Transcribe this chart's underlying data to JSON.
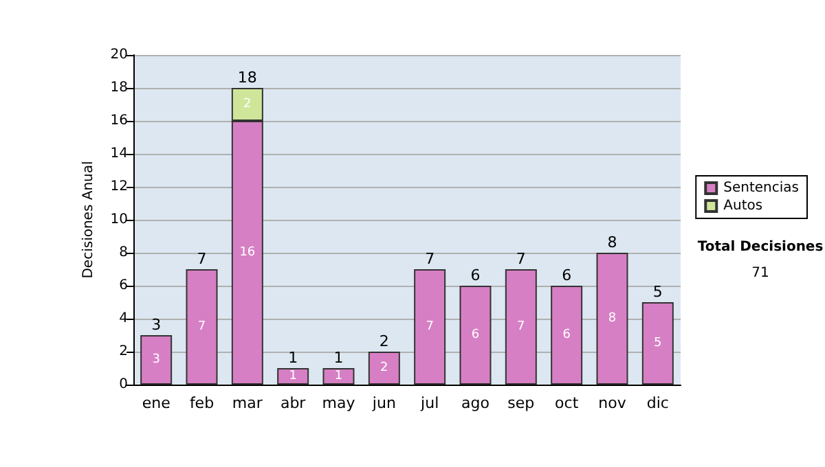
{
  "chart_data": {
    "type": "bar",
    "stacked": true,
    "ylabel": "Decisiones Anual",
    "categories": [
      "ene",
      "feb",
      "mar",
      "abr",
      "may",
      "jun",
      "jul",
      "ago",
      "sep",
      "oct",
      "nov",
      "dic"
    ],
    "series": [
      {
        "name": "Sentencias",
        "color": "#d77fc4",
        "values": [
          3,
          7,
          16,
          1,
          1,
          2,
          7,
          6,
          7,
          6,
          8,
          5
        ]
      },
      {
        "name": "Autos",
        "color": "#cfe69a",
        "values": [
          null,
          null,
          2,
          null,
          null,
          null,
          null,
          null,
          null,
          null,
          null,
          null
        ]
      }
    ],
    "totals": [
      "3",
      "7",
      "18",
      "1",
      "1",
      "2",
      "7",
      "6",
      "7",
      "6",
      "8",
      "5"
    ],
    "ylim": [
      0,
      20
    ],
    "yticks": [
      0,
      2,
      4,
      6,
      8,
      10,
      12,
      14,
      16,
      18,
      20
    ],
    "grid": "y",
    "legend": "right",
    "data_labels": true,
    "annotations": [
      "Total Decisiones",
      "71"
    ]
  }
}
